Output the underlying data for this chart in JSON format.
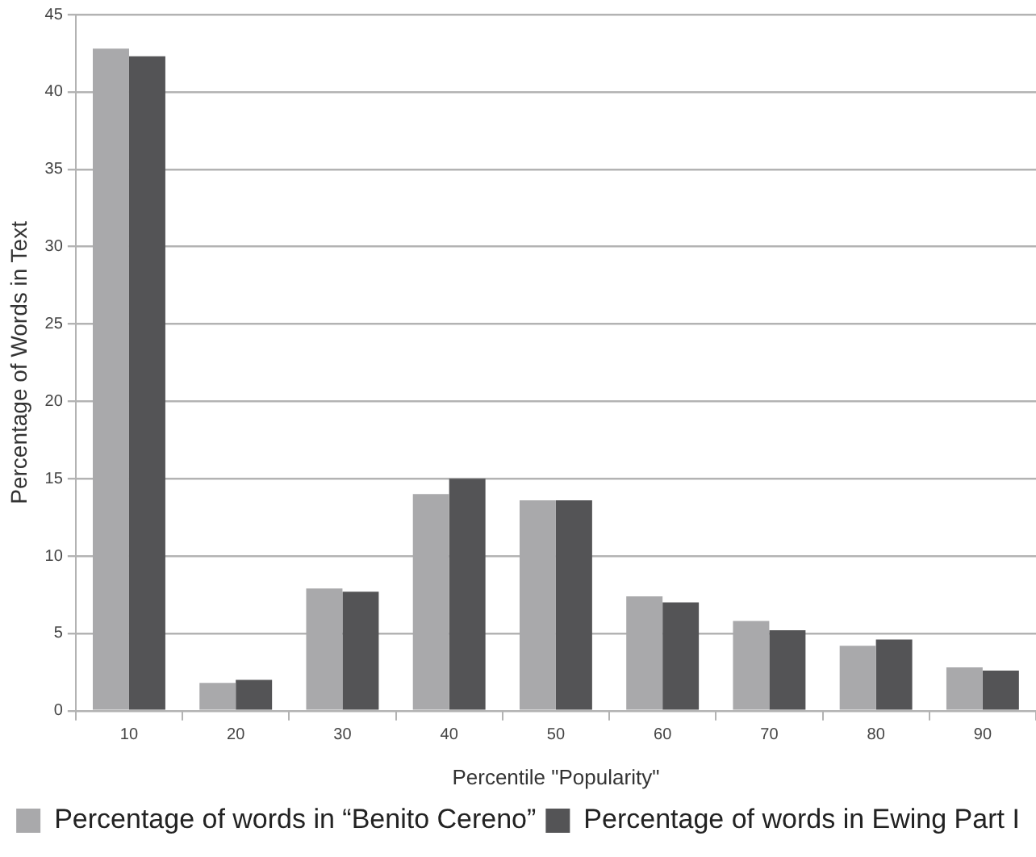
{
  "chart_data": {
    "type": "bar",
    "xlabel": "Percentile \"Popularity\"",
    "ylabel": "Percentage of Words in Text",
    "categories": [
      "10",
      "20",
      "30",
      "40",
      "50",
      "60",
      "70",
      "80",
      "90"
    ],
    "series": [
      {
        "name": "Percentage of words in “Benito Cereno”",
        "color": "#a9a9ab",
        "values": [
          42.8,
          1.8,
          7.9,
          14.0,
          13.6,
          7.4,
          5.8,
          4.2,
          2.8
        ]
      },
      {
        "name": "Percentage of words in Ewing Part I",
        "color": "#545456",
        "values": [
          42.3,
          2.0,
          7.7,
          15.0,
          13.6,
          7.0,
          5.2,
          4.6,
          2.6
        ]
      }
    ],
    "ylim": [
      0,
      45
    ],
    "yticks": [
      0,
      5,
      10,
      15,
      20,
      25,
      30,
      35,
      40,
      45
    ],
    "grid": "y",
    "legend": "bottom"
  }
}
